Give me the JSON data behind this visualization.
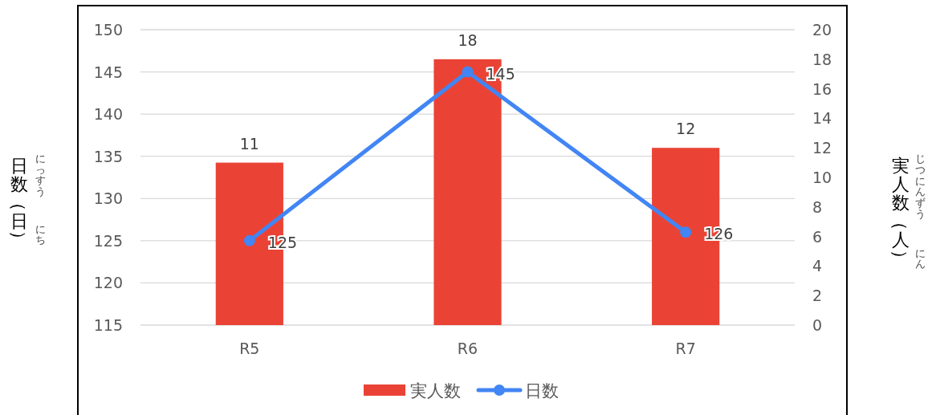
{
  "chart_data": {
    "type": "bar",
    "categories": [
      "R5",
      "R6",
      "R7"
    ],
    "series": [
      {
        "name": "実人数",
        "axis": "y2",
        "color": "#ea4335",
        "values": [
          11,
          18,
          12
        ]
      },
      {
        "name": "日数",
        "type": "line",
        "axis": "y",
        "color": "#4285f4",
        "values": [
          125,
          145,
          126
        ]
      }
    ],
    "ylabel": "日数（日）",
    "y2label": "実人数（人）",
    "annotations": [
      "にっすう",
      "にち",
      "じつにんずう",
      "にん"
    ],
    "ylim": [
      115,
      150
    ],
    "yticks": [
      115,
      120,
      125,
      130,
      135,
      140,
      145,
      150
    ],
    "y2lim": [
      0,
      20
    ],
    "y2ticks": [
      0,
      2,
      4,
      6,
      8,
      10,
      12,
      14,
      16,
      18,
      20
    ],
    "grid": "y",
    "legend": "bottom",
    "marker": "circle",
    "data_labels": true
  }
}
